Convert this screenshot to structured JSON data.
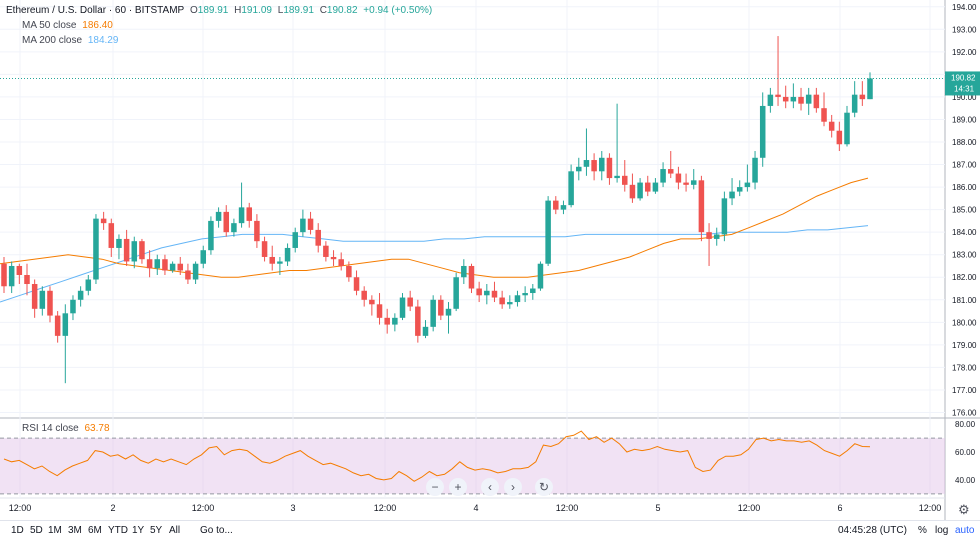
{
  "header": {
    "symbol": "Ethereum / U.S. Dollar · 60 · BITSTAMP",
    "o_label": "O",
    "o_value": "189.91",
    "h_label": "H",
    "h_value": "191.09",
    "l_label": "L",
    "l_value": "189.91",
    "c_label": "C",
    "c_value": "190.82",
    "change": "+0.94 (+0.50%)"
  },
  "indicators": {
    "ma50_label": "MA  50 close",
    "ma50_value": "186.40",
    "ma200_label": "MA  200 close",
    "ma200_value": "184.29",
    "rsi_label": "RSI  14 close",
    "rsi_value": "63.78"
  },
  "price_label": {
    "value": "190.82",
    "countdown": "14:31"
  },
  "controls": {
    "zoom_out": "−",
    "zoom_in": "+",
    "scroll_left": "‹",
    "scroll_right": "›",
    "reset": "↻"
  },
  "bottombar": {
    "ranges": [
      "1D",
      "5D",
      "1M",
      "3M",
      "6M",
      "YTD",
      "1Y",
      "5Y",
      "All"
    ],
    "goto": "Go to...",
    "clock": "04:45:28 (UTC)",
    "percent": "%",
    "log": "log",
    "auto": "auto"
  },
  "colors": {
    "up": "#26a69a",
    "down": "#ef5350",
    "ma50": "#f57c00",
    "ma200": "#64b5f6",
    "rsi": "#f57c00",
    "rsi_band": "#e1bee7",
    "last_price": "#26a69a"
  },
  "icons": {
    "settings": "gear-icon"
  },
  "chart_data": {
    "type": "candlestick",
    "price_ticks": [
      176,
      177,
      178,
      179,
      180,
      181,
      182,
      183,
      184,
      185,
      186,
      187,
      188,
      189,
      190,
      191,
      192,
      193,
      194
    ],
    "ylim": [
      175.8,
      194.3
    ],
    "time_labels": [
      "12:00",
      "2",
      "12:00",
      "3",
      "12:00",
      "4",
      "12:00",
      "5",
      "12:00",
      "6",
      "12:00"
    ],
    "rsi_ticks": [
      40,
      60,
      80
    ],
    "rsi_ylim": [
      27,
      83
    ],
    "rsi_bands": [
      30,
      70
    ],
    "last_price": 190.82,
    "candles": [
      [
        182.6,
        182.9,
        181.3,
        181.6
      ],
      [
        181.6,
        182.7,
        181.3,
        182.5
      ],
      [
        182.5,
        182.6,
        181.7,
        182.1
      ],
      [
        182.1,
        182.6,
        181.2,
        181.7
      ],
      [
        181.7,
        181.9,
        180.2,
        180.6
      ],
      [
        180.6,
        181.6,
        180.3,
        181.4
      ],
      [
        181.4,
        181.6,
        180.0,
        180.3
      ],
      [
        180.3,
        180.5,
        179.1,
        179.4
      ],
      [
        179.4,
        180.8,
        177.3,
        180.4
      ],
      [
        180.4,
        181.2,
        180.1,
        181.0
      ],
      [
        181.0,
        181.6,
        180.7,
        181.4
      ],
      [
        181.4,
        182.1,
        181.2,
        181.9
      ],
      [
        181.9,
        184.8,
        181.7,
        184.6
      ],
      [
        184.6,
        184.9,
        184.1,
        184.4
      ],
      [
        184.4,
        184.6,
        182.9,
        183.3
      ],
      [
        183.3,
        183.9,
        182.8,
        183.7
      ],
      [
        183.7,
        184.1,
        182.5,
        182.7
      ],
      [
        182.7,
        183.8,
        182.4,
        183.6
      ],
      [
        183.6,
        183.7,
        182.6,
        182.8
      ],
      [
        182.8,
        183.2,
        182.0,
        182.4
      ],
      [
        182.4,
        183.0,
        182.1,
        182.8
      ],
      [
        182.8,
        183.0,
        182.1,
        182.3
      ],
      [
        182.3,
        182.7,
        182.2,
        182.6
      ],
      [
        182.6,
        182.9,
        182.1,
        182.3
      ],
      [
        182.3,
        182.6,
        181.7,
        181.9
      ],
      [
        181.9,
        182.7,
        181.7,
        182.6
      ],
      [
        182.6,
        183.4,
        182.4,
        183.2
      ],
      [
        183.2,
        184.7,
        183.0,
        184.5
      ],
      [
        184.5,
        185.1,
        184.2,
        184.9
      ],
      [
        184.9,
        185.2,
        183.8,
        184.0
      ],
      [
        184.0,
        184.6,
        183.8,
        184.4
      ],
      [
        184.4,
        186.2,
        184.2,
        185.1
      ],
      [
        185.1,
        185.3,
        184.2,
        184.5
      ],
      [
        184.5,
        184.8,
        183.3,
        183.6
      ],
      [
        183.6,
        183.8,
        182.7,
        182.9
      ],
      [
        182.9,
        183.4,
        182.3,
        182.6
      ],
      [
        182.6,
        182.9,
        182.1,
        182.7
      ],
      [
        182.7,
        183.5,
        182.5,
        183.3
      ],
      [
        183.3,
        184.2,
        183.1,
        184.0
      ],
      [
        184.0,
        185.0,
        183.8,
        184.6
      ],
      [
        184.6,
        184.9,
        183.9,
        184.1
      ],
      [
        184.1,
        184.4,
        183.1,
        183.4
      ],
      [
        183.4,
        183.6,
        182.7,
        182.9
      ],
      [
        182.9,
        183.2,
        182.5,
        182.8
      ],
      [
        182.8,
        183.1,
        182.3,
        182.5
      ],
      [
        182.5,
        182.7,
        181.8,
        182.0
      ],
      [
        182.0,
        182.3,
        181.2,
        181.4
      ],
      [
        181.4,
        181.6,
        180.7,
        181.0
      ],
      [
        181.0,
        181.2,
        180.3,
        180.8
      ],
      [
        180.8,
        181.3,
        179.9,
        180.2
      ],
      [
        180.2,
        180.6,
        179.5,
        179.9
      ],
      [
        179.9,
        180.4,
        179.6,
        180.2
      ],
      [
        180.2,
        181.3,
        180.1,
        181.1
      ],
      [
        181.1,
        181.4,
        180.5,
        180.7
      ],
      [
        180.7,
        181.0,
        179.1,
        179.4
      ],
      [
        179.4,
        180.1,
        179.3,
        179.8
      ],
      [
        179.8,
        181.2,
        179.6,
        181.0
      ],
      [
        181.0,
        181.2,
        180.1,
        180.3
      ],
      [
        180.3,
        180.9,
        179.5,
        180.6
      ],
      [
        180.6,
        182.2,
        180.5,
        182.0
      ],
      [
        182.0,
        182.8,
        181.7,
        182.5
      ],
      [
        182.5,
        182.6,
        181.3,
        181.5
      ],
      [
        181.5,
        181.8,
        180.9,
        181.2
      ],
      [
        181.2,
        181.7,
        180.8,
        181.4
      ],
      [
        181.4,
        181.8,
        180.9,
        181.1
      ],
      [
        181.1,
        181.4,
        180.6,
        180.8
      ],
      [
        180.8,
        181.2,
        180.6,
        180.9
      ],
      [
        180.9,
        181.4,
        180.7,
        181.2
      ],
      [
        181.2,
        181.6,
        180.9,
        181.3
      ],
      [
        181.3,
        181.7,
        181.0,
        181.5
      ],
      [
        181.5,
        182.7,
        181.4,
        182.6
      ],
      [
        182.6,
        185.6,
        182.5,
        185.4
      ],
      [
        185.4,
        185.6,
        184.8,
        185.0
      ],
      [
        185.0,
        185.4,
        184.8,
        185.2
      ],
      [
        185.2,
        187.0,
        185.1,
        186.7
      ],
      [
        186.7,
        187.3,
        186.3,
        186.9
      ],
      [
        186.9,
        188.6,
        186.5,
        187.2
      ],
      [
        187.2,
        187.5,
        186.3,
        186.7
      ],
      [
        186.7,
        187.6,
        186.3,
        187.3
      ],
      [
        187.3,
        187.5,
        186.1,
        186.4
      ],
      [
        186.4,
        189.7,
        186.2,
        186.5
      ],
      [
        186.5,
        187.2,
        185.8,
        186.1
      ],
      [
        186.1,
        186.6,
        185.3,
        185.5
      ],
      [
        185.5,
        186.4,
        185.4,
        186.2
      ],
      [
        186.2,
        186.5,
        185.6,
        185.8
      ],
      [
        185.8,
        186.4,
        185.7,
        186.2
      ],
      [
        186.2,
        187.1,
        186.0,
        186.8
      ],
      [
        186.8,
        187.6,
        186.4,
        186.6
      ],
      [
        186.6,
        186.9,
        185.9,
        186.2
      ],
      [
        186.2,
        186.6,
        185.8,
        186.1
      ],
      [
        186.1,
        186.8,
        185.9,
        186.3
      ],
      [
        186.3,
        186.5,
        183.6,
        184.0
      ],
      [
        184.0,
        184.4,
        182.5,
        183.7
      ],
      [
        183.7,
        184.2,
        183.4,
        183.9
      ],
      [
        183.9,
        185.8,
        183.6,
        185.5
      ],
      [
        185.5,
        186.4,
        185.2,
        185.8
      ],
      [
        185.8,
        186.3,
        185.6,
        186.0
      ],
      [
        186.0,
        187.0,
        185.8,
        186.2
      ],
      [
        186.2,
        187.6,
        185.9,
        187.3
      ],
      [
        187.3,
        190.2,
        186.9,
        189.6
      ],
      [
        189.6,
        190.4,
        189.3,
        190.1
      ],
      [
        190.1,
        192.7,
        189.6,
        190.0
      ],
      [
        190.0,
        190.5,
        189.5,
        189.8
      ],
      [
        189.8,
        190.6,
        189.5,
        190.0
      ],
      [
        190.0,
        190.4,
        189.4,
        189.7
      ],
      [
        189.7,
        190.4,
        189.2,
        190.1
      ],
      [
        190.1,
        190.4,
        189.3,
        189.5
      ],
      [
        189.5,
        190.2,
        188.7,
        188.9
      ],
      [
        188.9,
        189.2,
        188.2,
        188.5
      ],
      [
        188.5,
        188.9,
        187.6,
        187.9
      ],
      [
        187.9,
        189.6,
        187.8,
        189.3
      ],
      [
        189.3,
        190.7,
        189.1,
        190.1
      ],
      [
        190.1,
        190.7,
        189.6,
        189.9
      ],
      [
        189.9,
        191.09,
        189.9,
        190.82
      ]
    ],
    "ma50": [
      182.6,
      182.7,
      182.8,
      182.9,
      183.0,
      182.9,
      182.8,
      182.6,
      182.5,
      182.4,
      182.3,
      182.2,
      182.1,
      182.0,
      182.0,
      182.1,
      182.2,
      182.3,
      182.3,
      182.4,
      182.5,
      182.6,
      182.7,
      182.8,
      182.8,
      182.6,
      182.4,
      182.2,
      182.1,
      182.0,
      182.0,
      182.0,
      182.1,
      182.2,
      182.3,
      182.5,
      182.7,
      182.9,
      183.2,
      183.5,
      183.7,
      183.7,
      183.8,
      183.9,
      184.2,
      184.5,
      184.8,
      185.2,
      185.6,
      185.9,
      186.2,
      186.4
    ],
    "ma200": [
      180.9,
      181.2,
      181.5,
      181.8,
      182.1,
      182.4,
      182.7,
      183.0,
      183.3,
      183.5,
      183.7,
      183.8,
      183.9,
      183.9,
      183.9,
      183.8,
      183.7,
      183.6,
      183.6,
      183.6,
      183.6,
      183.6,
      183.7,
      183.7,
      183.8,
      183.8,
      183.8,
      183.8,
      183.8,
      183.9,
      183.9,
      183.9,
      183.9,
      183.9,
      183.9,
      183.9,
      184.0,
      184.0,
      184.0,
      184.0,
      184.1,
      184.1,
      184.2,
      184.29
    ],
    "rsi": [
      55,
      53,
      54,
      51,
      48,
      50,
      46,
      43,
      47,
      50,
      52,
      54,
      61,
      60,
      57,
      58,
      55,
      58,
      54,
      52,
      55,
      53,
      55,
      53,
      51,
      55,
      58,
      63,
      64,
      58,
      61,
      62,
      61,
      57,
      53,
      52,
      54,
      57,
      59,
      61,
      57,
      54,
      51,
      52,
      50,
      48,
      45,
      43,
      44,
      41,
      40,
      41,
      46,
      43,
      39,
      42,
      46,
      43,
      44,
      48,
      53,
      49,
      47,
      48,
      47,
      45,
      46,
      48,
      48,
      49,
      53,
      65,
      64,
      66,
      71,
      72,
      75,
      69,
      71,
      67,
      70,
      66,
      60,
      62,
      61,
      62,
      64,
      62,
      61,
      60,
      61,
      49,
      46,
      47,
      54,
      57,
      57,
      58,
      62,
      69,
      70,
      68,
      69,
      68,
      68,
      67,
      68,
      65,
      61,
      59,
      57,
      61,
      66,
      64,
      63.78
    ]
  }
}
